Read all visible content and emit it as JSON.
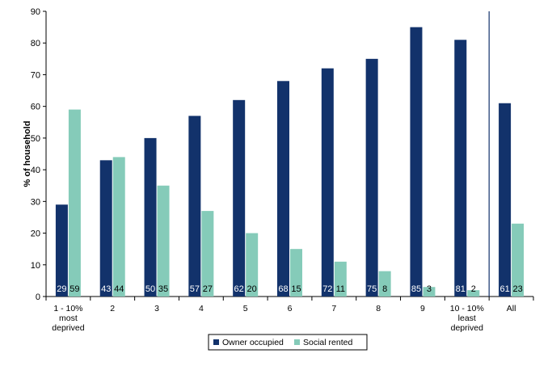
{
  "chart_data": {
    "type": "bar",
    "ylabel": "% of household",
    "xlabel": "",
    "ylim": [
      0,
      90
    ],
    "yticks": [
      "0",
      "10",
      "20",
      "30",
      "40",
      "50",
      "60",
      "70",
      "80",
      "90"
    ],
    "grid": false,
    "legend_position": "bottom-center",
    "categories": [
      [
        "1 - 10%",
        "most",
        "deprived"
      ],
      [
        "2"
      ],
      [
        "3"
      ],
      [
        "4"
      ],
      [
        "5"
      ],
      [
        "6"
      ],
      [
        "7"
      ],
      [
        "8"
      ],
      [
        "9"
      ],
      [
        "10 - 10%",
        "least",
        "deprived"
      ],
      [
        "All"
      ]
    ],
    "series": [
      {
        "name": "Owner occupied",
        "color": "#12326b",
        "values": [
          29,
          43,
          50,
          57,
          62,
          68,
          72,
          75,
          85,
          81,
          61
        ]
      },
      {
        "name": "Social rented",
        "color": "#85cbb9",
        "values": [
          59,
          44,
          35,
          27,
          20,
          15,
          11,
          8,
          3,
          2,
          23
        ]
      }
    ]
  }
}
